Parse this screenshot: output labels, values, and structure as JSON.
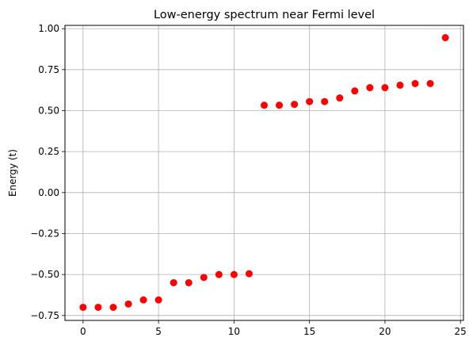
{
  "chart_data": {
    "type": "scatter",
    "title": "Low-energy spectrum near Fermi level",
    "xlabel": "",
    "ylabel": "Energy (t)",
    "xlim": [
      -1.2,
      25.2
    ],
    "ylim": [
      -0.78,
      1.02
    ],
    "xticks": [
      0,
      5,
      10,
      15,
      20,
      25
    ],
    "xtick_labels": [
      "0",
      "5",
      "10",
      "15",
      "20",
      "25"
    ],
    "yticks": [
      -0.75,
      -0.5,
      -0.25,
      0.0,
      0.25,
      0.5,
      0.75,
      1.0
    ],
    "ytick_labels": [
      "−0.75",
      "−0.50",
      "−0.25",
      "0.00",
      "0.25",
      "0.50",
      "0.75",
      "1.00"
    ],
    "grid": true,
    "marker_color": "#ff0000",
    "series": [
      {
        "x": [
          0,
          1,
          2,
          3,
          4,
          5,
          6,
          7,
          8,
          9,
          10,
          11,
          12,
          13,
          14,
          15,
          16,
          17,
          18,
          19,
          20,
          21,
          22,
          23,
          24
        ],
        "values": [
          -0.7,
          -0.7,
          -0.7,
          -0.68,
          -0.655,
          -0.655,
          -0.55,
          -0.55,
          -0.518,
          -0.5,
          -0.5,
          -0.495,
          0.533,
          0.533,
          0.538,
          0.555,
          0.555,
          0.577,
          0.62,
          0.64,
          0.64,
          0.655,
          0.665,
          0.665,
          0.945
        ]
      }
    ]
  }
}
